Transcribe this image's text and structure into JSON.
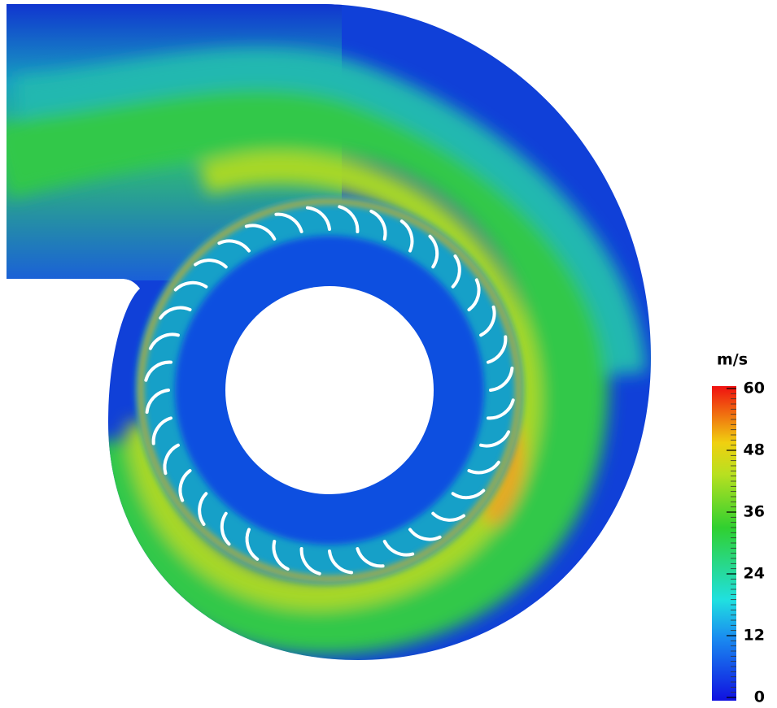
{
  "colorbar": {
    "unit": "m/s",
    "range": [
      0,
      60
    ],
    "ticks": [
      0,
      12,
      24,
      36,
      48,
      60
    ]
  }
}
